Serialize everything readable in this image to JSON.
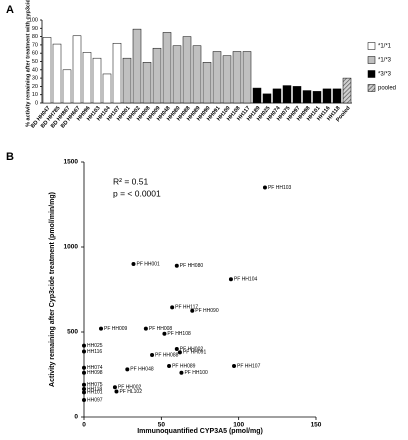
{
  "chart_data": [
    {
      "type": "bar",
      "panel": "A",
      "y_label": "% activity remaining after treatment with cyp3cide",
      "ylim": [
        0,
        100
      ],
      "yticks": [
        0,
        10,
        20,
        30,
        40,
        50,
        60,
        70,
        80,
        90,
        100
      ],
      "series": [
        {
          "name": "*1/*1",
          "color": "#ffffff",
          "categories": [
            "BD HH047",
            "BD HH785",
            "BD HH867",
            "BD HH667",
            "HH096",
            "HH103",
            "HH104",
            "HH107"
          ],
          "values": [
            79,
            71,
            40,
            81,
            61,
            54,
            35,
            72
          ]
        },
        {
          "name": "*1/*3",
          "color": "#c0c0c0",
          "categories": [
            "HH001",
            "HH002",
            "HH008",
            "HH009",
            "HH048",
            "HH080",
            "HH088",
            "HH089",
            "HH090",
            "HH091",
            "HH100",
            "HH108",
            "HH117"
          ],
          "values": [
            54,
            89,
            49,
            66,
            85,
            69,
            80,
            69,
            49,
            62,
            57,
            62,
            62
          ]
        },
        {
          "name": "*3/*3",
          "color": "#000000",
          "categories": [
            "HH189",
            "HH025",
            "HH074",
            "HH075",
            "HH097",
            "HH098",
            "HH101",
            "HH116",
            "HH118"
          ],
          "values": [
            18,
            11,
            17,
            21,
            20,
            15,
            14,
            17,
            17
          ]
        },
        {
          "name": "pooled",
          "color": "#808080",
          "hatch": true,
          "categories": [
            "Pooled"
          ],
          "values": [
            30
          ]
        }
      ]
    },
    {
      "type": "scatter",
      "panel": "B",
      "x_label": "Immunoquantified CYP3A5 (pmol/mg)",
      "y_label": "Activity remaining after Cyp3cide treatment (pmol/min/mg)",
      "annotations": [
        "R² = 0.51",
        "p = < 0.0001"
      ],
      "xlim": [
        0,
        150
      ],
      "xticks": [
        0,
        50,
        100,
        150
      ],
      "ylim": [
        0,
        1500
      ],
      "yticks": [
        0,
        500,
        1000,
        1500
      ],
      "color": "#000000",
      "point_labels": [
        "PF HH103",
        "PF HH001",
        "PF HH080",
        "PF HH104",
        "PF HH117",
        "PF HH090",
        "PF HH009",
        "PF HH008",
        "PF HH108",
        "PF HH002",
        "PF HH091",
        "PF HH088",
        "PF HH089",
        "PF HH048",
        "PF HH100",
        "PF HH107",
        "HH025",
        "HH116",
        "HH074",
        "HH098",
        "HH075",
        "PF HH002",
        "HH118",
        "PF HL102",
        "HH101",
        "HH097"
      ],
      "x": [
        117,
        32,
        60,
        95,
        57,
        70,
        11,
        40,
        52,
        60,
        62,
        44,
        55,
        28,
        63,
        97,
        0,
        0,
        0,
        0,
        0,
        20,
        0,
        21,
        0,
        0
      ],
      "values": [
        1350,
        900,
        890,
        810,
        645,
        625,
        520,
        520,
        490,
        400,
        380,
        365,
        300,
        280,
        260,
        300,
        420,
        385,
        290,
        260,
        190,
        175,
        165,
        150,
        145,
        100
      ]
    }
  ]
}
